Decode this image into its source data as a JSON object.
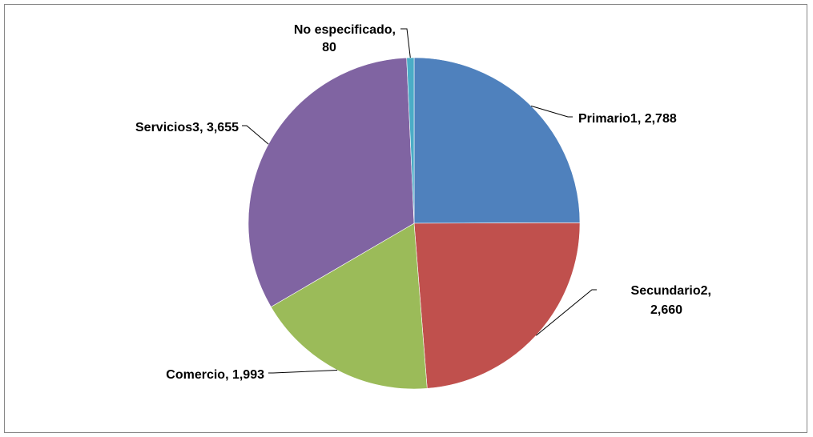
{
  "chart_data": {
    "type": "pie",
    "title": "",
    "legend": "none",
    "slices": [
      {
        "name": "Primario1",
        "value": 2788,
        "value_label": "2,788",
        "color": "#4F81BD"
      },
      {
        "name": "Secundario2",
        "value": 2660,
        "value_label": "2,660",
        "color": "#C0504D"
      },
      {
        "name": "Comercio",
        "value": 1993,
        "value_label": "1,993",
        "color": "#9BBB59"
      },
      {
        "name": "Servicios3",
        "value": 3655,
        "value_label": "3,655",
        "color": "#8064A2"
      },
      {
        "name": "No especificado",
        "value": 80,
        "value_label": "80",
        "color": "#4BACC6"
      }
    ]
  }
}
